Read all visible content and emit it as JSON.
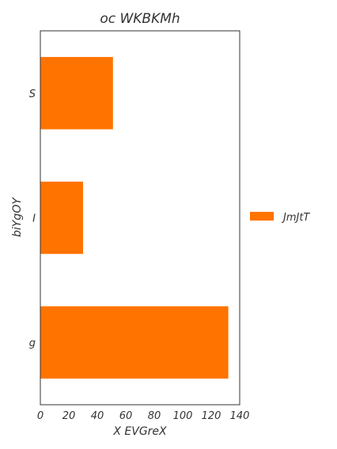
{
  "chart_data": {
    "type": "bar",
    "orientation": "horizontal",
    "title": "oc WKBKMh",
    "xlabel": "X EVGreX",
    "ylabel": "biYgOY",
    "categories": [
      "S",
      "I",
      "g"
    ],
    "series": [
      {
        "name": "JmJtT",
        "values": [
          51,
          30,
          132
        ],
        "color": "#ff7300"
      }
    ],
    "xlim": [
      0,
      140
    ],
    "xticks": [
      0,
      20,
      40,
      60,
      80,
      100,
      120,
      140
    ],
    "grid": false,
    "legend_position": "right"
  }
}
